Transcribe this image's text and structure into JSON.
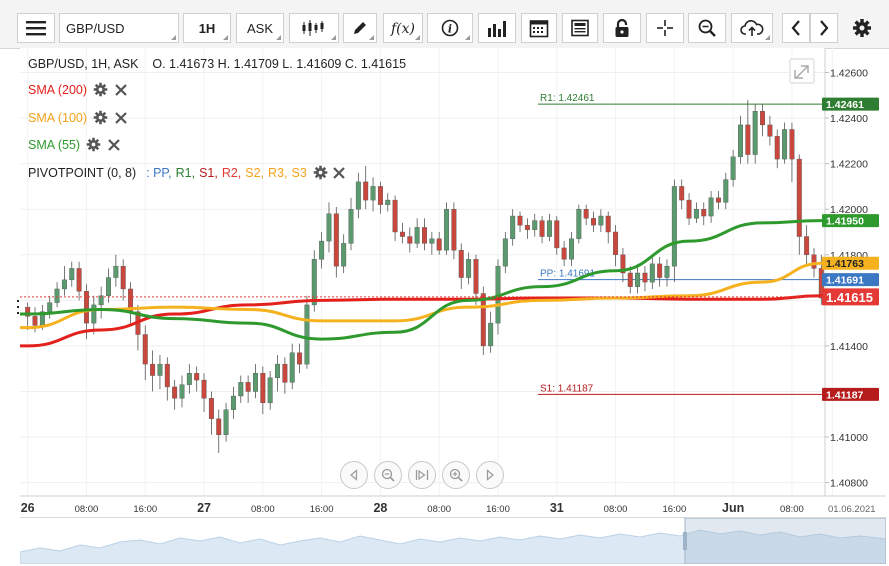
{
  "toolbar": {
    "symbol": "GBP/USD",
    "interval": "1H",
    "price_type": "ASK"
  },
  "legend": {
    "ohlc_line": "GBP/USD, 1H, ASK    O. 1.41673 H. 1.41709 L. 1.41609 C. 1.41615",
    "sma200": "SMA (200)",
    "sma100": "SMA (100)",
    "sma55": "SMA (55)",
    "pivot_prefix": "PIVOTPOINT (0, 8)",
    "pivot_items": [
      {
        "text": ": PP,",
        "color": "#3b78c4"
      },
      {
        "text": "R1,",
        "color": "#2e7d32"
      },
      {
        "text": "S1,",
        "color": "#b71c1c"
      },
      {
        "text": "R2,",
        "color": "#e53935"
      },
      {
        "text": "S2,",
        "color": "#f3a21c"
      },
      {
        "text": "R3,",
        "color": "#f3a21c"
      },
      {
        "text": "S3",
        "color": "#f3a21c"
      }
    ]
  },
  "colors": {
    "up_candle": "#5a9a6e",
    "down_candle": "#c9473d",
    "sma200": "#e3201b",
    "sma100": "#f5b21e",
    "sma55": "#2e9a2e",
    "r1": "#2e7d32",
    "pp": "#3b78c4",
    "s1": "#b71c1c",
    "last_price": "#e53935"
  },
  "icons": [
    "menu-icon",
    "candlestick-icon",
    "pencil-icon",
    "fx-icon",
    "info-icon",
    "bar-volume-icon",
    "calendar-icon",
    "news-icon",
    "lock-icon",
    "crosshair-icon",
    "zoom-icon",
    "cloud-upload-icon",
    "chevron-left-icon",
    "chevron-right-icon",
    "gear-icon",
    "expand-icon",
    "rewind-icon",
    "zoom-out-icon",
    "fit-icon",
    "zoom-in-icon",
    "forward-icon"
  ],
  "chart_data": {
    "type": "candlestick",
    "title": "GBP/USD, 1H, ASK",
    "ohlc_readout": {
      "open": 1.41673,
      "high": 1.41709,
      "low": 1.41609,
      "close": 1.41615
    },
    "y_ticks": [
      1.408,
      1.41,
      1.412,
      1.414,
      1.416,
      1.418,
      1.42,
      1.422,
      1.424,
      1.426
    ],
    "y_tick_labels": [
      "1.40800",
      "1.41000",
      "",
      "1.41400",
      "",
      "1.41800",
      "1.42000",
      "1.42200",
      "1.42400",
      "1.42600"
    ],
    "ylim": [
      1.4075,
      1.4269
    ],
    "x_labels": [
      "26",
      "08:00",
      "16:00",
      "27",
      "08:00",
      "16:00",
      "28",
      "08:00",
      "16:00",
      "31",
      "08:00",
      "16:00",
      "Jun",
      "08:00",
      "01.06.2021"
    ],
    "x_label_index": [
      0,
      8,
      16,
      24,
      32,
      40,
      48,
      56,
      64,
      72,
      80,
      88,
      96,
      104,
      109.5
    ],
    "levels": [
      {
        "name": "R1",
        "label": "R1: 1.42461",
        "value": 1.42461,
        "badge": "1.42461"
      },
      {
        "name": "PP",
        "label": "PP: 1.41691",
        "value": 1.41691,
        "badge": "1.41691"
      },
      {
        "name": "S1",
        "label": "S1: 1.41187",
        "value": 1.41187,
        "badge": "1.41187"
      }
    ],
    "price_badges": [
      {
        "series": "SMA (55)",
        "value": 1.4195,
        "text": "1.41950"
      },
      {
        "series": "SMA (100)",
        "value": 1.41763,
        "text": "1.41763"
      },
      {
        "series": "Last",
        "value": 1.41615,
        "text": "1.41615"
      }
    ],
    "candles": [
      [
        1.4157,
        1.4153,
        1.4159,
        1.4147
      ],
      [
        1.4153,
        1.4149,
        1.4157,
        1.4146
      ],
      [
        1.4149,
        1.4155,
        1.4158,
        1.4147
      ],
      [
        1.4155,
        1.4159,
        1.4162,
        1.4152
      ],
      [
        1.4159,
        1.4165,
        1.4168,
        1.4157
      ],
      [
        1.4165,
        1.4169,
        1.4175,
        1.4162
      ],
      [
        1.4169,
        1.4174,
        1.4177,
        1.4166
      ],
      [
        1.4174,
        1.4164,
        1.4177,
        1.416
      ],
      [
        1.4164,
        1.415,
        1.4167,
        1.4143
      ],
      [
        1.415,
        1.4158,
        1.4162,
        1.4145
      ],
      [
        1.4158,
        1.4162,
        1.4166,
        1.4152
      ],
      [
        1.4162,
        1.417,
        1.4174,
        1.4159
      ],
      [
        1.417,
        1.4175,
        1.418,
        1.4166
      ],
      [
        1.4175,
        1.4165,
        1.4178,
        1.416
      ],
      [
        1.4165,
        1.4155,
        1.4168,
        1.4149
      ],
      [
        1.4155,
        1.4145,
        1.4158,
        1.4138
      ],
      [
        1.4145,
        1.4132,
        1.4149,
        1.4125
      ],
      [
        1.4132,
        1.4127,
        1.4138,
        1.412
      ],
      [
        1.4127,
        1.4132,
        1.4136,
        1.4121
      ],
      [
        1.4132,
        1.4122,
        1.4135,
        1.4116
      ],
      [
        1.4122,
        1.4117,
        1.4125,
        1.4112
      ],
      [
        1.4117,
        1.4123,
        1.4127,
        1.4113
      ],
      [
        1.4123,
        1.4128,
        1.4132,
        1.4119
      ],
      [
        1.4128,
        1.4125,
        1.4131,
        1.412
      ],
      [
        1.4125,
        1.4117,
        1.4128,
        1.4111
      ],
      [
        1.4117,
        1.4108,
        1.412,
        1.4101
      ],
      [
        1.4108,
        1.4101,
        1.4112,
        1.4093
      ],
      [
        1.4101,
        1.4112,
        1.4115,
        1.4098
      ],
      [
        1.4112,
        1.4118,
        1.4122,
        1.4108
      ],
      [
        1.4118,
        1.4124,
        1.4127,
        1.4115
      ],
      [
        1.4124,
        1.412,
        1.4127,
        1.4115
      ],
      [
        1.412,
        1.4128,
        1.4132,
        1.4117
      ],
      [
        1.4128,
        1.4115,
        1.4131,
        1.411
      ],
      [
        1.4115,
        1.4126,
        1.4129,
        1.4112
      ],
      [
        1.4126,
        1.4132,
        1.4136,
        1.412
      ],
      [
        1.4132,
        1.4124,
        1.4135,
        1.4119
      ],
      [
        1.4124,
        1.4137,
        1.4141,
        1.4121
      ],
      [
        1.4137,
        1.4132,
        1.4141,
        1.4128
      ],
      [
        1.4132,
        1.4158,
        1.4162,
        1.413
      ],
      [
        1.4158,
        1.4178,
        1.4182,
        1.4155
      ],
      [
        1.4178,
        1.4186,
        1.419,
        1.4174
      ],
      [
        1.4186,
        1.4198,
        1.4203,
        1.4181
      ],
      [
        1.4198,
        1.4175,
        1.4201,
        1.417
      ],
      [
        1.4175,
        1.4185,
        1.4189,
        1.4172
      ],
      [
        1.4185,
        1.42,
        1.4205,
        1.4182
      ],
      [
        1.42,
        1.4212,
        1.4216,
        1.4196
      ],
      [
        1.4212,
        1.4204,
        1.4219,
        1.42
      ],
      [
        1.4204,
        1.421,
        1.4214,
        1.4199
      ],
      [
        1.421,
        1.4202,
        1.4212,
        1.4198
      ],
      [
        1.4202,
        1.4204,
        1.4207,
        1.4199
      ],
      [
        1.4204,
        1.419,
        1.4206,
        1.4186
      ],
      [
        1.419,
        1.4188,
        1.4194,
        1.4185
      ],
      [
        1.4188,
        1.4185,
        1.4192,
        1.4181
      ],
      [
        1.4185,
        1.4192,
        1.4196,
        1.4183
      ],
      [
        1.4192,
        1.4185,
        1.4196,
        1.4182
      ],
      [
        1.4185,
        1.4187,
        1.419,
        1.418
      ],
      [
        1.4187,
        1.4182,
        1.419,
        1.418
      ],
      [
        1.4182,
        1.42,
        1.4203,
        1.418
      ],
      [
        1.42,
        1.4182,
        1.4203,
        1.4178
      ],
      [
        1.4182,
        1.417,
        1.4185,
        1.4165
      ],
      [
        1.417,
        1.4178,
        1.4181,
        1.4167
      ],
      [
        1.4178,
        1.4163,
        1.418,
        1.4158
      ],
      [
        1.4163,
        1.414,
        1.4166,
        1.4136
      ],
      [
        1.414,
        1.415,
        1.4155,
        1.4137
      ],
      [
        1.415,
        1.4175,
        1.4178,
        1.4145
      ],
      [
        1.4175,
        1.4187,
        1.419,
        1.4172
      ],
      [
        1.4187,
        1.4197,
        1.42,
        1.4184
      ],
      [
        1.4197,
        1.4193,
        1.4199,
        1.419
      ],
      [
        1.4193,
        1.4191,
        1.4196,
        1.4187
      ],
      [
        1.4191,
        1.4195,
        1.4198,
        1.4188
      ],
      [
        1.4195,
        1.4188,
        1.4197,
        1.4185
      ],
      [
        1.4188,
        1.4195,
        1.4198,
        1.4186
      ],
      [
        1.4195,
        1.4183,
        1.4197,
        1.418
      ],
      [
        1.4183,
        1.4178,
        1.4186,
        1.4175
      ],
      [
        1.4178,
        1.4187,
        1.419,
        1.4175
      ],
      [
        1.4187,
        1.42,
        1.4202,
        1.4185
      ],
      [
        1.42,
        1.4196,
        1.4202,
        1.4193
      ],
      [
        1.4196,
        1.4193,
        1.4199,
        1.419
      ],
      [
        1.4193,
        1.4197,
        1.42,
        1.419
      ],
      [
        1.4197,
        1.419,
        1.4199,
        1.4185
      ],
      [
        1.419,
        1.418,
        1.4193,
        1.4175
      ],
      [
        1.418,
        1.4172,
        1.4183,
        1.4168
      ],
      [
        1.4172,
        1.4166,
        1.4175,
        1.4163
      ],
      [
        1.4166,
        1.4172,
        1.4176,
        1.4163
      ],
      [
        1.4172,
        1.4168,
        1.4175,
        1.4164
      ],
      [
        1.4168,
        1.4176,
        1.418,
        1.4165
      ],
      [
        1.4176,
        1.417,
        1.4179,
        1.4166
      ],
      [
        1.417,
        1.4175,
        1.4178,
        1.4166
      ],
      [
        1.4175,
        1.421,
        1.4213,
        1.4168
      ],
      [
        1.421,
        1.4204,
        1.4213,
        1.42
      ],
      [
        1.4204,
        1.4196,
        1.4207,
        1.4193
      ],
      [
        1.4196,
        1.42,
        1.4203,
        1.4194
      ],
      [
        1.42,
        1.4197,
        1.4203,
        1.4193
      ],
      [
        1.4197,
        1.4205,
        1.4208,
        1.4194
      ],
      [
        1.4205,
        1.4203,
        1.4208,
        1.42
      ],
      [
        1.4203,
        1.4213,
        1.4216,
        1.42
      ],
      [
        1.4213,
        1.4223,
        1.4226,
        1.421
      ],
      [
        1.4223,
        1.4237,
        1.4241,
        1.422
      ],
      [
        1.4237,
        1.4224,
        1.4248,
        1.422
      ],
      [
        1.4224,
        1.4243,
        1.4246,
        1.422
      ],
      [
        1.4243,
        1.4237,
        1.4246,
        1.4232
      ],
      [
        1.4237,
        1.4232,
        1.4241,
        1.4228
      ],
      [
        1.4232,
        1.4222,
        1.4235,
        1.4218
      ],
      [
        1.4222,
        1.4235,
        1.4238,
        1.422
      ],
      [
        1.4235,
        1.4222,
        1.4238,
        1.4212
      ],
      [
        1.4222,
        1.4188,
        1.4224,
        1.418
      ],
      [
        1.4188,
        1.418,
        1.4193,
        1.4175
      ],
      [
        1.418,
        1.4174,
        1.4183,
        1.417
      ],
      [
        1.4174,
        1.4161,
        1.418,
        1.4158
      ]
    ],
    "series": [
      {
        "name": "SMA (200)",
        "x": [
          0,
          10,
          20,
          30,
          40,
          50,
          60,
          70,
          80,
          90,
          100,
          108
        ],
        "values": [
          1.414,
          1.4147,
          1.4154,
          1.4158,
          1.416,
          1.41605,
          1.41605,
          1.4161,
          1.4161,
          1.41605,
          1.41605,
          1.4162
        ]
      },
      {
        "name": "SMA (100)",
        "x": [
          0,
          10,
          20,
          30,
          40,
          50,
          60,
          70,
          80,
          90,
          100,
          108
        ],
        "values": [
          1.4148,
          1.4156,
          1.4157,
          1.4156,
          1.4151,
          1.4151,
          1.4157,
          1.416,
          1.4161,
          1.4162,
          1.4168,
          1.41763
        ]
      },
      {
        "name": "SMA (55)",
        "x": [
          0,
          10,
          20,
          30,
          40,
          50,
          60,
          70,
          80,
          90,
          100,
          108
        ],
        "values": [
          1.4154,
          1.4156,
          1.4152,
          1.415,
          1.4143,
          1.4146,
          1.416,
          1.4166,
          1.4173,
          1.4186,
          1.4194,
          1.4195
        ]
      }
    ]
  }
}
